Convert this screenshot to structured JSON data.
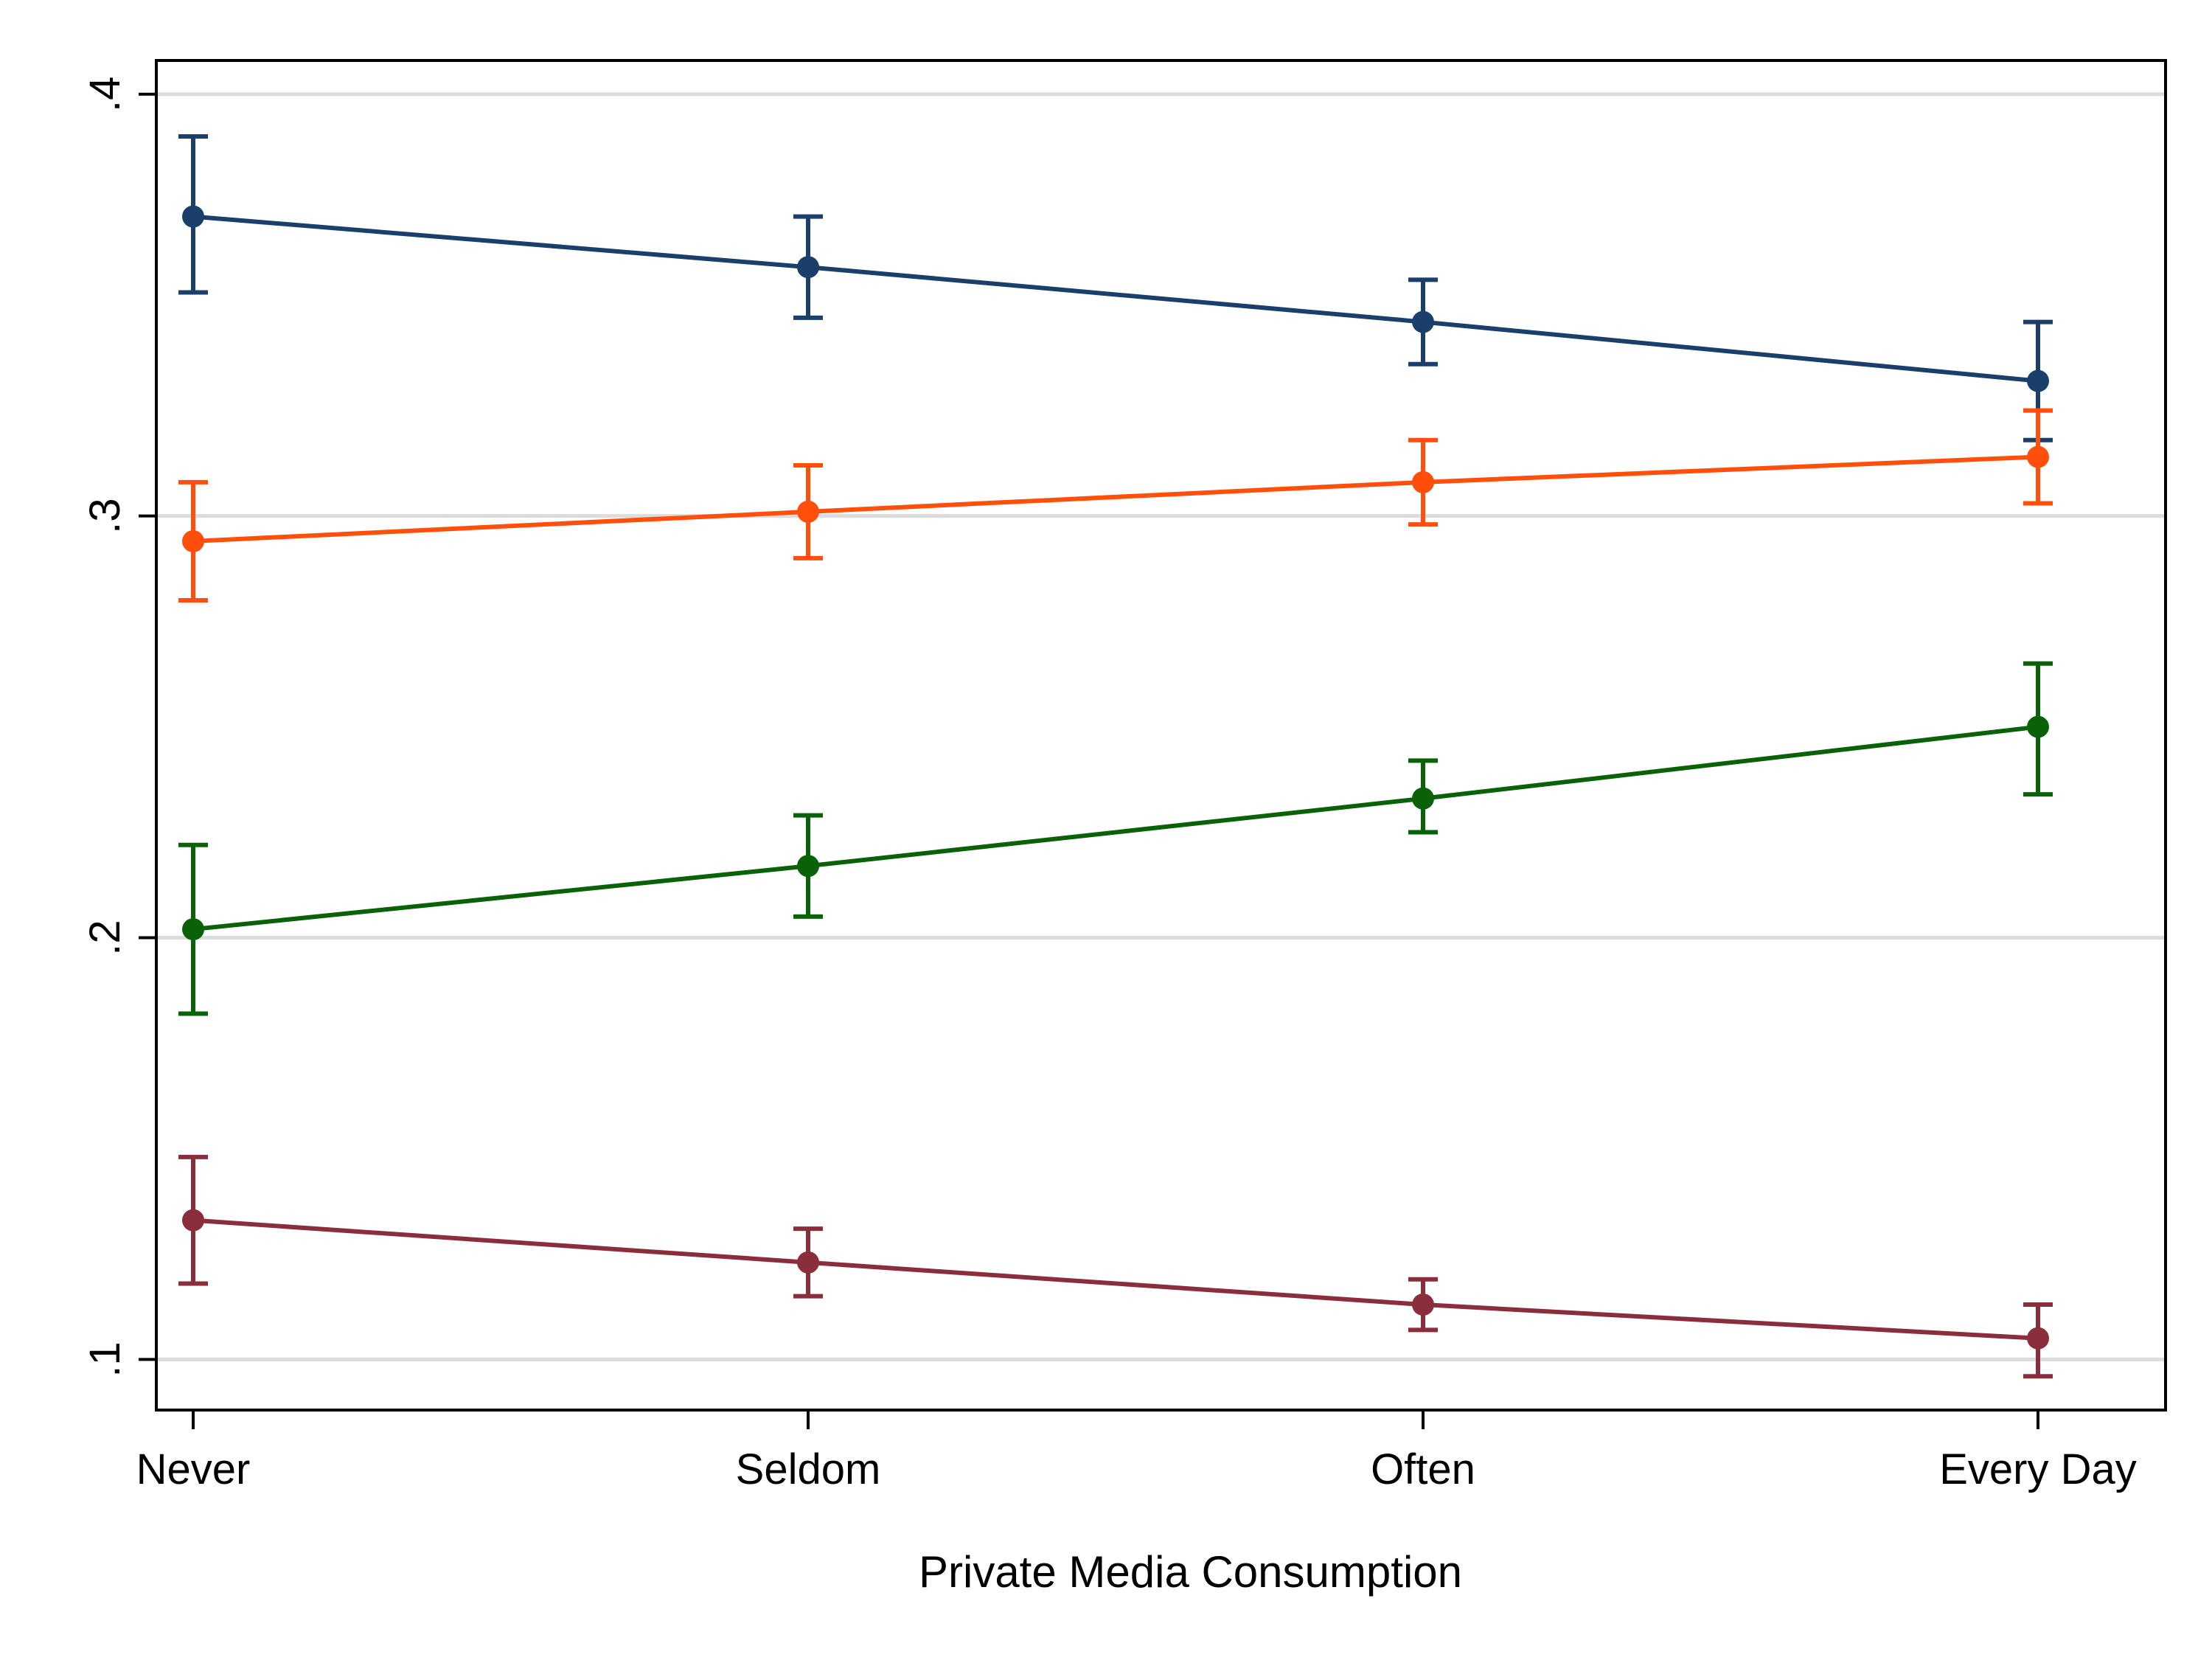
{
  "chart_data": {
    "type": "line",
    "title": "",
    "xlabel": "Private Media Consumption",
    "ylabel": "",
    "categories": [
      "Never",
      "Seldom",
      "Often",
      "Every Day"
    ],
    "ylim": [
      0.088,
      0.408
    ],
    "yticks": [
      0.1,
      0.2,
      0.3,
      0.4
    ],
    "ytick_labels": [
      ".1",
      ".2",
      ".3",
      ".4"
    ],
    "grid": "horizontal",
    "legend": "none",
    "error_bars": true,
    "series": [
      {
        "color": "#1a3f6b",
        "values": [
          0.371,
          0.359,
          0.346,
          0.332
        ],
        "lower": [
          0.353,
          0.347,
          0.336,
          0.318
        ],
        "upper": [
          0.39,
          0.371,
          0.356,
          0.346
        ]
      },
      {
        "color": "#ff4f0a",
        "values": [
          0.294,
          0.301,
          0.308,
          0.314
        ],
        "lower": [
          0.28,
          0.29,
          0.298,
          0.303
        ],
        "upper": [
          0.308,
          0.312,
          0.318,
          0.325
        ]
      },
      {
        "color": "#0a6208",
        "values": [
          0.202,
          0.217,
          0.233,
          0.25
        ],
        "lower": [
          0.182,
          0.205,
          0.225,
          0.234
        ],
        "upper": [
          0.222,
          0.229,
          0.242,
          0.265
        ]
      },
      {
        "color": "#8b2e3c",
        "values": [
          0.133,
          0.123,
          0.113,
          0.105
        ],
        "lower": [
          0.118,
          0.115,
          0.107,
          0.096
        ],
        "upper": [
          0.148,
          0.131,
          0.119,
          0.113
        ]
      }
    ]
  }
}
